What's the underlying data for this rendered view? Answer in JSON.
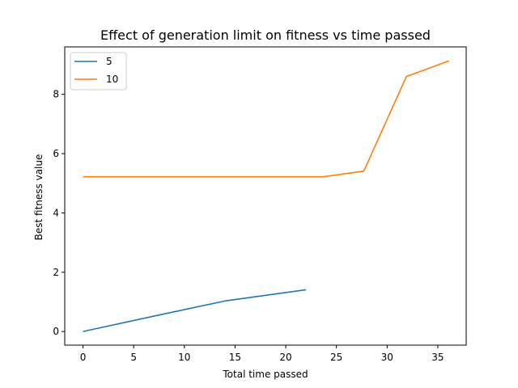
{
  "chart_data": {
    "type": "line",
    "title": "Effect of generation limit on fitness vs time passed",
    "xlabel": "Total time passed",
    "ylabel": "Best fitness value",
    "xlim": [
      -1.8,
      37.8
    ],
    "ylim": [
      -0.46,
      9.6
    ],
    "xticks": [
      0,
      5,
      10,
      15,
      20,
      25,
      30,
      35
    ],
    "yticks": [
      0,
      2,
      4,
      6,
      8
    ],
    "grid": false,
    "legend": "upper-left",
    "series": [
      {
        "name": "5",
        "color": "#1f77b4",
        "x": [
          0,
          7,
          14,
          22
        ],
        "y": [
          0,
          0.52,
          1.03,
          1.41
        ]
      },
      {
        "name": "10",
        "color": "#ff7f0e",
        "x": [
          0,
          23.7,
          27.7,
          31.9,
          36.1
        ],
        "y": [
          5.22,
          5.22,
          5.41,
          8.6,
          9.13
        ]
      }
    ]
  }
}
